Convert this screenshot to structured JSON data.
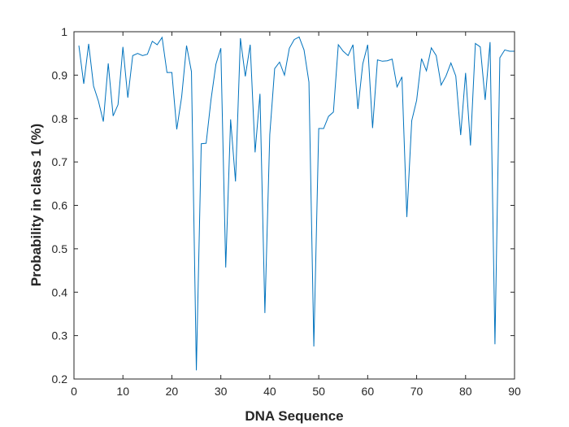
{
  "chart_data": {
    "type": "line",
    "title": "",
    "xlabel": "DNA Sequence",
    "ylabel": "Probability in class 1 (%)",
    "xlim": [
      0,
      90
    ],
    "ylim": [
      0.2,
      1
    ],
    "xticks": [
      0,
      10,
      20,
      30,
      40,
      50,
      60,
      70,
      80,
      90
    ],
    "yticks": [
      0.2,
      0.3,
      0.4,
      0.5,
      0.6,
      0.7,
      0.8,
      0.9,
      1
    ],
    "xtick_labels": [
      "0",
      "10",
      "20",
      "30",
      "40",
      "50",
      "60",
      "70",
      "80",
      "90"
    ],
    "ytick_labels": [
      "0.2",
      "0.3",
      "0.4",
      "0.5",
      "0.6",
      "0.7",
      "0.8",
      "0.9",
      "1"
    ],
    "grid": false,
    "line_color": "#0072BD",
    "series": [
      {
        "x": [
          1,
          2,
          3,
          4,
          5,
          6,
          7,
          8,
          9,
          10,
          11,
          12,
          13,
          14,
          15,
          16,
          17,
          18,
          19,
          20,
          21,
          22,
          23,
          24,
          25,
          26,
          27,
          28,
          29,
          30,
          31,
          32,
          33,
          34,
          35,
          36,
          37,
          38,
          39,
          40,
          41,
          42,
          43,
          44,
          45,
          46,
          47,
          48,
          49,
          50,
          51,
          52,
          53,
          54,
          55,
          56,
          57,
          58,
          59,
          60,
          61,
          62,
          63,
          64,
          65,
          66,
          67,
          68,
          69,
          70,
          71,
          72,
          73,
          74,
          75,
          76,
          77,
          78,
          79,
          80,
          81,
          82,
          83,
          84,
          85,
          86,
          87,
          88,
          89,
          90
        ],
        "values": [
          0.968,
          0.88,
          0.972,
          0.875,
          0.84,
          0.793,
          0.927,
          0.806,
          0.832,
          0.965,
          0.848,
          0.945,
          0.95,
          0.945,
          0.948,
          0.978,
          0.97,
          0.987,
          0.906,
          0.906,
          0.775,
          0.85,
          0.968,
          0.908,
          0.22,
          0.742,
          0.743,
          0.844,
          0.925,
          0.962,
          0.457,
          0.798,
          0.655,
          0.985,
          0.897,
          0.97,
          0.722,
          0.857,
          0.352,
          0.763,
          0.915,
          0.93,
          0.9,
          0.962,
          0.982,
          0.988,
          0.958,
          0.884,
          0.275,
          0.777,
          0.777,
          0.805,
          0.815,
          0.97,
          0.955,
          0.945,
          0.97,
          0.822,
          0.926,
          0.97,
          0.778,
          0.935,
          0.932,
          0.933,
          0.937,
          0.873,
          0.896,
          0.573,
          0.795,
          0.842,
          0.938,
          0.91,
          0.963,
          0.945,
          0.877,
          0.898,
          0.928,
          0.898,
          0.762,
          0.905,
          0.738,
          0.973,
          0.965,
          0.843,
          0.976,
          0.28,
          0.94,
          0.958,
          0.955,
          0.955
        ]
      }
    ]
  }
}
